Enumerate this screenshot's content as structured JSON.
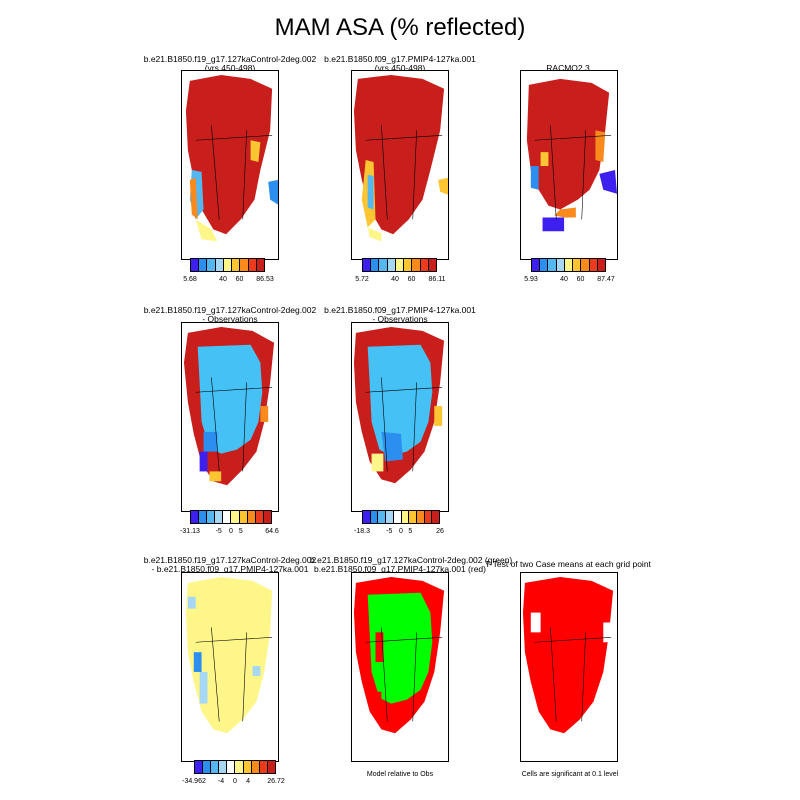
{
  "title": "MAM ASA (% reflected)",
  "colors": {
    "palette_abs": [
      "#3d1ff0",
      "#2c8ff0",
      "#55b7f0",
      "#a6d7f5",
      "#fff68a",
      "#fdc532",
      "#fb8a1d",
      "#ea3b1e",
      "#c81f1c"
    ],
    "sig_red": "#ff0000",
    "sig_green": "#00ff00",
    "diff_yellow": "#fff68a",
    "obs_blue": "#45c1f5"
  },
  "row1": {
    "panels": [
      {
        "title_line1": "b.e21.B1850.f19_g17.127kaControl-2deg.002",
        "title_line2": "(yrs 450-498)",
        "colorbar": {
          "min": "5.68",
          "ticks": [
            "40",
            "60"
          ],
          "max": "86.53"
        }
      },
      {
        "title_line1": "b.e21.B1850.f09_g17.PMIP4-127ka.001",
        "title_line2": "(yrs 450-498)",
        "colorbar": {
          "min": "5.72",
          "ticks": [
            "40",
            "60"
          ],
          "max": "86.11"
        }
      },
      {
        "title_line1": "RACMO2.3",
        "title_line2": "",
        "colorbar": {
          "min": "5.93",
          "ticks": [
            "40",
            "60"
          ],
          "max": "87.47"
        }
      }
    ]
  },
  "row2": {
    "panels": [
      {
        "title_line1": "b.e21.B1850.f19_g17.127kaControl-2deg.002",
        "title_line2": "- Observations",
        "colorbar": {
          "min": "-31.13",
          "ticks": [
            "-5",
            "0",
            "5"
          ],
          "max": "64.6"
        }
      },
      {
        "title_line1": "b.e21.B1850.f09_g17.PMIP4-127ka.001",
        "title_line2": "- Observations",
        "colorbar": {
          "min": "-18.3",
          "ticks": [
            "-5",
            "0",
            "5"
          ],
          "max": "26"
        }
      }
    ]
  },
  "row3": {
    "panels": [
      {
        "title_line1": "b.e21.B1850.f19_g17.127kaControl-2deg.002",
        "title_line2": "- b.e21.B1850.f09_g17.PMIP4-127ka.001",
        "colorbar": {
          "min": "-34.962",
          "ticks": [
            "-4",
            "0",
            "4"
          ],
          "max": "26.72"
        }
      },
      {
        "title_line1": "b.e21.B1850.f19_g17.127kaControl-2deg.002 (green)",
        "title_line2": "b.e21.B1850.f09_g17.PMIP4-127ka.001 (red)",
        "note": "Model relative to Obs"
      },
      {
        "title_line1": "T-Test of two Case means at each grid point",
        "title_line2": "",
        "note": "Cells are significant at 0.1 level"
      }
    ]
  }
}
